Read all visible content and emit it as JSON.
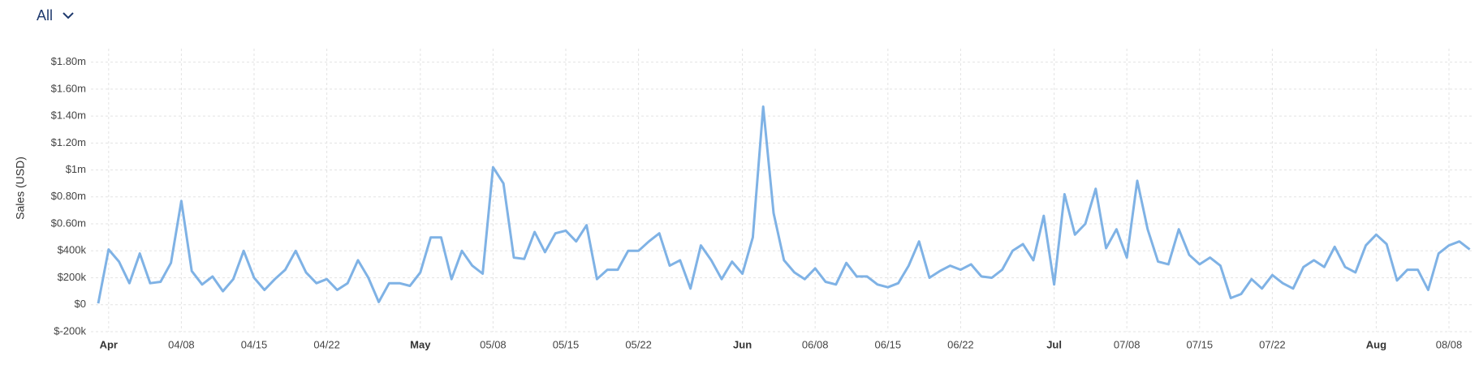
{
  "header": {
    "filter": "All"
  },
  "chart_data": {
    "type": "line",
    "y_label": "Sales (USD)",
    "categories": [
      null,
      "Apr",
      null,
      null,
      null,
      null,
      null,
      null,
      "04/08",
      null,
      null,
      null,
      null,
      null,
      null,
      "04/15",
      null,
      null,
      null,
      null,
      null,
      null,
      "04/22",
      null,
      null,
      null,
      null,
      null,
      null,
      null,
      null,
      "May",
      null,
      null,
      null,
      null,
      null,
      null,
      "05/08",
      null,
      null,
      null,
      null,
      null,
      null,
      "05/15",
      null,
      null,
      null,
      null,
      null,
      null,
      "05/22",
      null,
      null,
      null,
      null,
      null,
      null,
      null,
      null,
      null,
      "Jun",
      null,
      null,
      null,
      null,
      null,
      null,
      "06/08",
      null,
      null,
      null,
      null,
      null,
      null,
      "06/15",
      null,
      null,
      null,
      null,
      null,
      null,
      "06/22",
      null,
      null,
      null,
      null,
      null,
      null,
      null,
      null,
      "Jul",
      null,
      null,
      null,
      null,
      null,
      null,
      "07/08",
      null,
      null,
      null,
      null,
      null,
      null,
      "07/15",
      null,
      null,
      null,
      null,
      null,
      null,
      "07/22",
      null,
      null,
      null,
      null,
      null,
      null,
      null,
      null,
      null,
      "Aug",
      null,
      null,
      null,
      null,
      null,
      null,
      "08/08",
      null,
      null
    ],
    "series": [
      {
        "name": "Sales",
        "color": "#7fb2e5",
        "values": [
          10000,
          410000,
          320000,
          160000,
          380000,
          160000,
          170000,
          310000,
          770000,
          250000,
          150000,
          210000,
          100000,
          190000,
          400000,
          200000,
          110000,
          190000,
          260000,
          400000,
          240000,
          160000,
          190000,
          110000,
          160000,
          330000,
          200000,
          20000,
          160000,
          160000,
          140000,
          240000,
          500000,
          500000,
          190000,
          400000,
          290000,
          230000,
          1020000,
          900000,
          350000,
          340000,
          540000,
          390000,
          530000,
          550000,
          470000,
          590000,
          190000,
          260000,
          260000,
          400000,
          400000,
          470000,
          530000,
          290000,
          330000,
          120000,
          440000,
          330000,
          190000,
          320000,
          230000,
          500000,
          1470000,
          680000,
          330000,
          240000,
          190000,
          270000,
          170000,
          150000,
          310000,
          210000,
          210000,
          150000,
          130000,
          160000,
          290000,
          470000,
          200000,
          250000,
          290000,
          260000,
          300000,
          210000,
          200000,
          260000,
          400000,
          450000,
          330000,
          660000,
          150000,
          820000,
          520000,
          600000,
          860000,
          420000,
          560000,
          350000,
          920000,
          560000,
          320000,
          300000,
          560000,
          370000,
          300000,
          350000,
          290000,
          50000,
          80000,
          190000,
          120000,
          220000,
          160000,
          120000,
          280000,
          330000,
          280000,
          430000,
          280000,
          240000,
          440000,
          520000,
          450000,
          180000,
          260000,
          260000,
          110000,
          380000,
          440000,
          470000,
          410000
        ]
      }
    ],
    "ylim": [
      -200000,
      1900000
    ],
    "yticks": [
      {
        "value": -200000,
        "label": "$-200k"
      },
      {
        "value": 0,
        "label": "$0"
      },
      {
        "value": 200000,
        "label": "$200k"
      },
      {
        "value": 400000,
        "label": "$400k"
      },
      {
        "value": 600000,
        "label": "$0.60m"
      },
      {
        "value": 800000,
        "label": "$0.80m"
      },
      {
        "value": 1000000,
        "label": "$1m"
      },
      {
        "value": 1200000,
        "label": "$1.20m"
      },
      {
        "value": 1400000,
        "label": "$1.40m"
      },
      {
        "value": 1600000,
        "label": "$1.60m"
      },
      {
        "value": 1800000,
        "label": "$1.80m"
      }
    ],
    "grid": true
  }
}
